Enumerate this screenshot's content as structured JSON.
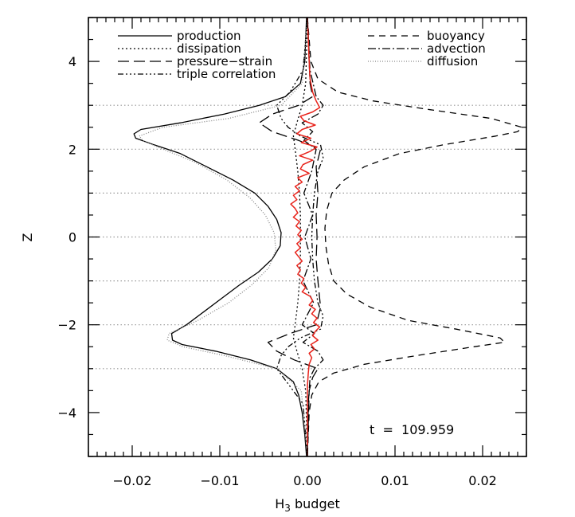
{
  "chart_data": {
    "type": "line",
    "xlabel": "H",
    "xlabel_sub": "3",
    "xlabel_suffix": " budget",
    "ylabel": "Z",
    "xlim": [
      -0.025,
      0.025
    ],
    "ylim": [
      -5,
      5
    ],
    "x_ticks": [
      -0.02,
      -0.01,
      0.0,
      0.01,
      0.02
    ],
    "x_tick_labels": [
      "−0.02",
      "−0.01",
      "0.00",
      "0.01",
      "0.02"
    ],
    "y_ticks": [
      -4,
      -2,
      0,
      2,
      4
    ],
    "y_tick_labels": [
      "−4",
      "−2",
      "0",
      "2",
      "4"
    ],
    "reference_lines_z": [
      3,
      2,
      1,
      0,
      -1,
      -2,
      -3
    ],
    "annotation": "t  =  109.959",
    "legend_left": [
      "production",
      "dissipation",
      "pressure−strain",
      "triple correlation"
    ],
    "legend_right": [
      "buoyancy",
      "advection",
      "diffusion"
    ],
    "series": [
      {
        "name": "production",
        "color": "#000000",
        "dash": "",
        "z": [
          5.0,
          4.0,
          3.5,
          3.2,
          3.0,
          2.8,
          2.6,
          2.45,
          2.35,
          2.25,
          2.1,
          1.9,
          1.6,
          1.3,
          1.0,
          0.7,
          0.4,
          0.1,
          -0.2,
          -0.5,
          -0.8,
          -1.1,
          -1.4,
          -1.7,
          -2.0,
          -2.2,
          -2.35,
          -2.45,
          -2.6,
          -2.8,
          -3.0,
          -3.3,
          -3.6,
          -4.0,
          -4.5,
          -5.0
        ],
        "x": [
          -0.0001,
          -0.0003,
          -0.0008,
          -0.0025,
          -0.0055,
          -0.0095,
          -0.0145,
          -0.019,
          -0.0198,
          -0.0196,
          -0.0175,
          -0.0145,
          -0.0115,
          -0.0085,
          -0.006,
          -0.0045,
          -0.0035,
          -0.003,
          -0.0031,
          -0.004,
          -0.0056,
          -0.0078,
          -0.0098,
          -0.0118,
          -0.0138,
          -0.0155,
          -0.0154,
          -0.0143,
          -0.0105,
          -0.0065,
          -0.0035,
          -0.0016,
          -0.001,
          -0.0006,
          -0.0003,
          -0.0001
        ]
      },
      {
        "name": "dissipation",
        "color": "#000000",
        "dash": "2,3",
        "z": [
          5.0,
          3.5,
          3.0,
          2.6,
          2.3,
          2.0,
          1.5,
          1.0,
          0.5,
          0.0,
          -0.5,
          -1.0,
          -1.5,
          -2.0,
          -2.3,
          -2.6,
          -3.0,
          -3.5,
          -5.0
        ],
        "x": [
          0.0,
          -0.0002,
          -0.0006,
          -0.0012,
          -0.0016,
          -0.0014,
          -0.0011,
          -0.0009,
          -0.0008,
          -0.0008,
          -0.0008,
          -0.0009,
          -0.0011,
          -0.0014,
          -0.0016,
          -0.0012,
          -0.0006,
          -0.0002,
          0.0
        ]
      },
      {
        "name": "pressure−strain",
        "color": "#000000",
        "dash": "14,6",
        "z": [
          5.0,
          3.5,
          3.2,
          3.0,
          2.8,
          2.6,
          2.4,
          2.2,
          2.0,
          1.6,
          1.0,
          0.5,
          0.0,
          -0.5,
          -1.0,
          -1.6,
          -2.0,
          -2.2,
          -2.4,
          -2.6,
          -2.8,
          -3.0,
          -3.2,
          -3.5,
          -5.0
        ],
        "x": [
          0.0,
          0.0003,
          0.0006,
          -0.001,
          -0.004,
          -0.0055,
          -0.004,
          -0.001,
          0.0015,
          0.001,
          0.0012,
          0.001,
          0.0011,
          0.001,
          0.0012,
          0.0015,
          0.001,
          -0.002,
          -0.0045,
          -0.0035,
          -0.0015,
          0.0012,
          0.0006,
          0.0002,
          0.0
        ]
      },
      {
        "name": "triple correlation",
        "color": "#000000",
        "dash": "7,3,2,3,2,3,2,3",
        "z": [
          5.0,
          3.8,
          3.3,
          3.0,
          2.7,
          2.5,
          2.3,
          2.1,
          1.8,
          1.5,
          1.0,
          0.5,
          0.0,
          -0.5,
          -1.0,
          -1.5,
          -1.8,
          -2.1,
          -2.3,
          -2.5,
          -2.7,
          -3.0,
          -3.4,
          -3.8,
          -5.0
        ],
        "x": [
          0.0,
          -0.0005,
          -0.002,
          -0.0035,
          -0.003,
          -0.0022,
          -0.0008,
          0.0015,
          0.0018,
          0.0012,
          0.0008,
          0.0006,
          0.0005,
          0.0006,
          0.0008,
          0.0012,
          0.0018,
          0.0015,
          -0.0008,
          -0.0022,
          -0.003,
          -0.0035,
          -0.002,
          -0.0005,
          0.0
        ]
      },
      {
        "name": "buoyancy",
        "color": "#000000",
        "dash": "8,6",
        "z": [
          5.0,
          4.0,
          3.6,
          3.3,
          3.1,
          2.9,
          2.7,
          2.5,
          2.4,
          2.3,
          2.1,
          1.9,
          1.6,
          1.3,
          1.0,
          0.6,
          0.2,
          -0.2,
          -0.6,
          -1.0,
          -1.3,
          -1.6,
          -1.9,
          -2.1,
          -2.3,
          -2.4,
          -2.5,
          -2.7,
          -2.9,
          -3.1,
          -3.3,
          -3.6,
          -4.0,
          -5.0
        ],
        "x": [
          0.0,
          0.0004,
          0.0012,
          0.0035,
          0.0075,
          0.014,
          0.021,
          0.0245,
          0.024,
          0.0215,
          0.0155,
          0.0105,
          0.0065,
          0.0042,
          0.0028,
          0.0022,
          0.002,
          0.0021,
          0.0024,
          0.003,
          0.0045,
          0.0072,
          0.0115,
          0.017,
          0.022,
          0.0225,
          0.019,
          0.0125,
          0.0065,
          0.003,
          0.0013,
          0.0005,
          0.0002,
          0.0
        ]
      },
      {
        "name": "advection",
        "color": "#000000",
        "dash": "10,3,2,3",
        "z": [
          5.0,
          3.8,
          3.2,
          3.0,
          2.8,
          2.6,
          2.4,
          2.2,
          2.0,
          1.5,
          1.0,
          0.5,
          0.0,
          -0.5,
          -1.0,
          -1.5,
          -2.0,
          -2.2,
          -2.4,
          -2.6,
          -2.8,
          -3.0,
          -3.2,
          -3.8,
          -5.0
        ],
        "x": [
          0.0,
          0.0003,
          0.001,
          0.0018,
          0.0012,
          -0.0006,
          0.0006,
          -0.0004,
          0.001,
          0.0005,
          -0.0004,
          0.0006,
          -0.0003,
          0.0004,
          -0.0005,
          0.0007,
          -0.0006,
          0.0008,
          -0.0005,
          0.0012,
          0.0018,
          0.0008,
          0.0003,
          0.0001,
          0.0
        ]
      },
      {
        "name": "diffusion",
        "color": "#888888",
        "dash": "1,2",
        "z": [
          5.0,
          3.5,
          3.0,
          2.7,
          2.5,
          2.3,
          2.2,
          2.0,
          1.7,
          1.3,
          0.9,
          0.5,
          0.1,
          -0.3,
          -0.7,
          -1.1,
          -1.5,
          -1.9,
          -2.2,
          -2.35,
          -2.5,
          -2.7,
          -3.0,
          -3.5,
          -5.0
        ],
        "x": [
          0.0,
          -0.0006,
          -0.003,
          -0.009,
          -0.0165,
          -0.0192,
          -0.0188,
          -0.0165,
          -0.0128,
          -0.0092,
          -0.0066,
          -0.0048,
          -0.0038,
          -0.0036,
          -0.0044,
          -0.0064,
          -0.009,
          -0.0125,
          -0.0158,
          -0.016,
          -0.0142,
          -0.0095,
          -0.0035,
          -0.0007,
          0.0
        ]
      },
      {
        "name": "",
        "color": "#e8231b",
        "dash": "",
        "z": [
          5.0,
          4.5,
          4.0,
          3.6,
          3.3,
          3.1,
          2.95,
          2.85,
          2.75,
          2.65,
          2.55,
          2.45,
          2.35,
          2.25,
          2.15,
          2.05,
          1.95,
          1.85,
          1.75,
          1.65,
          1.55,
          1.45,
          1.35,
          1.25,
          1.15,
          1.05,
          0.95,
          0.85,
          0.75,
          0.65,
          0.55,
          0.45,
          0.35,
          0.25,
          0.15,
          0.05,
          -0.05,
          -0.15,
          -0.25,
          -0.35,
          -0.45,
          -0.55,
          -0.65,
          -0.75,
          -0.85,
          -0.95,
          -1.05,
          -1.15,
          -1.25,
          -1.35,
          -1.45,
          -1.55,
          -1.65,
          -1.75,
          -1.85,
          -1.95,
          -2.05,
          -2.15,
          -2.25,
          -2.35,
          -2.45,
          -2.55,
          -2.65,
          -2.75,
          -2.9,
          -3.1,
          -3.4,
          -3.8,
          -4.3,
          -5.0
        ],
        "x": [
          0.0,
          0.0001,
          0.0002,
          0.0003,
          0.0006,
          0.001,
          0.0014,
          0.0006,
          -0.0008,
          -0.0004,
          0.0009,
          -0.0006,
          -0.0012,
          0.0004,
          -0.0007,
          0.0011,
          0.0003,
          -0.0009,
          0.0006,
          -0.0005,
          -0.0008,
          0.0002,
          -0.0011,
          -0.0006,
          -0.0014,
          -0.0009,
          -0.0016,
          -0.0012,
          -0.0019,
          -0.0014,
          -0.0011,
          -0.0016,
          -0.0009,
          -0.0013,
          -0.0007,
          -0.0011,
          -0.0006,
          -0.0012,
          -0.0008,
          -0.0014,
          -0.001,
          -0.0006,
          -0.0012,
          -0.0008,
          -0.0011,
          -0.0004,
          -0.0007,
          -0.0002,
          -0.0006,
          0.0003,
          0.0006,
          0.0002,
          0.0009,
          0.0005,
          0.0011,
          0.0007,
          0.0014,
          0.0009,
          0.0006,
          0.0012,
          0.0004,
          0.0008,
          0.0002,
          0.0005,
          0.0002,
          0.0001,
          0.0,
          0.0,
          0.0,
          0.0
        ]
      }
    ]
  }
}
